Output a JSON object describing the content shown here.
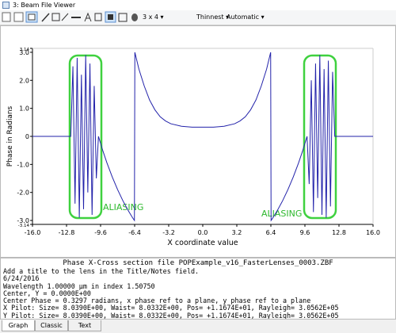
{
  "window_title": "3: Beam File Viewer",
  "toolbar": {
    "layout": "3 x 4 ▾",
    "line": "Thinnest ▾",
    "scale": "Automatic ▾"
  },
  "chart_data": {
    "type": "line",
    "xlabel": "X coordinate value",
    "ylabel": "Phase in Radians",
    "color": "#2222aa",
    "x": [
      -16,
      -12.4,
      -12.2,
      -12,
      -11.8,
      -11.6,
      -11.4,
      -11.2,
      -11,
      -10.8,
      -10.6,
      -10.4,
      -10.2,
      -10,
      -9.8,
      -9.4,
      -9,
      -8.5,
      -8,
      -7.5,
      -7,
      -6.6,
      -6.42,
      -6.38,
      -6,
      -5.5,
      -5,
      -4.5,
      -4,
      -3.5,
      -3,
      -2,
      -1,
      0,
      1,
      2,
      3,
      3.5,
      4,
      4.5,
      5,
      5.5,
      6,
      6.38,
      6.42,
      6.6,
      7,
      7.5,
      8,
      8.5,
      9,
      9.4,
      9.8,
      10,
      10.2,
      10.4,
      10.6,
      10.8,
      11,
      11.2,
      11.4,
      11.6,
      11.8,
      12,
      12.2,
      12.4,
      16
    ],
    "values": [
      0,
      0,
      2.5,
      -2.4,
      2.8,
      -2.9,
      2.2,
      -2.6,
      2.9,
      -2.0,
      2.6,
      -2.8,
      1.8,
      -1.5,
      0,
      -0.5,
      -0.95,
      -1.45,
      -1.9,
      -2.3,
      -2.65,
      -2.9,
      -3,
      3,
      2.4,
      1.8,
      1.3,
      0.95,
      0.7,
      0.55,
      0.45,
      0.36,
      0.33,
      0.33,
      0.33,
      0.36,
      0.45,
      0.55,
      0.7,
      0.95,
      1.3,
      1.8,
      2.4,
      3,
      -3,
      -2.9,
      -2.65,
      -2.3,
      -1.9,
      -1.45,
      -0.95,
      -0.5,
      0,
      -1.7,
      2.0,
      -2.7,
      2.6,
      -2.2,
      2.9,
      -2.8,
      2.4,
      -2.9,
      2.7,
      -2.5,
      2.3,
      0,
      0
    ],
    "xlim": [
      -16,
      16
    ],
    "xticks": [
      {
        "value": -16,
        "label": "-16.0"
      },
      {
        "value": -12.8,
        "label": "-12.8"
      },
      {
        "value": -9.6,
        "label": "-9.6"
      },
      {
        "value": -6.4,
        "label": "-6.4"
      },
      {
        "value": -3.2,
        "label": "-3.2"
      },
      {
        "value": 0,
        "label": "0.0"
      },
      {
        "value": 3.2,
        "label": "3.2"
      },
      {
        "value": 6.4,
        "label": "6.4"
      },
      {
        "value": 9.6,
        "label": "9.6"
      },
      {
        "value": 12.8,
        "label": "12.8"
      },
      {
        "value": 16,
        "label": "16.0"
      }
    ],
    "ylim": [
      -3.14,
      3.14
    ],
    "yticks": [
      3.14,
      {
        "value": 3,
        "label": "3.0"
      },
      {
        "value": 2,
        "label": "2.0"
      },
      {
        "value": 1,
        "label": "1.0"
      },
      0,
      {
        "value": -1,
        "label": "-1.0"
      },
      {
        "value": -2,
        "label": "-2.0"
      },
      {
        "value": -3,
        "label": "-3.0"
      },
      -3.14
    ],
    "annotations": [
      "ALIASING",
      "ALIASING"
    ]
  },
  "footer": {
    "caption": "Phase X-Cross section file POPExample_v16_FasterLenses_0003.ZBF",
    "lines": [
      "Add a title to the lens in the Title/Notes field.",
      "6/24/2016",
      "Wavelength 1.00000 µm in index 1.50750",
      "Center, Y = 0.0000E+00",
      "Center Phase = 0.3297 radians, x phase ref to a plane, y phase ref to a plane",
      "X Pilot: Size= 8.0390E+00, Waist= 8.0332E+00, Pos= +1.1674E+01, Rayleigh= 3.0562E+05",
      "Y Pilot: Size= 8.0390E+00, Waist= 8.0332E+00, Pos= +1.1674E+01, Rayleigh= 3.0562E+05"
    ]
  },
  "tabs": [
    "Graph",
    "Classic",
    "Text"
  ]
}
